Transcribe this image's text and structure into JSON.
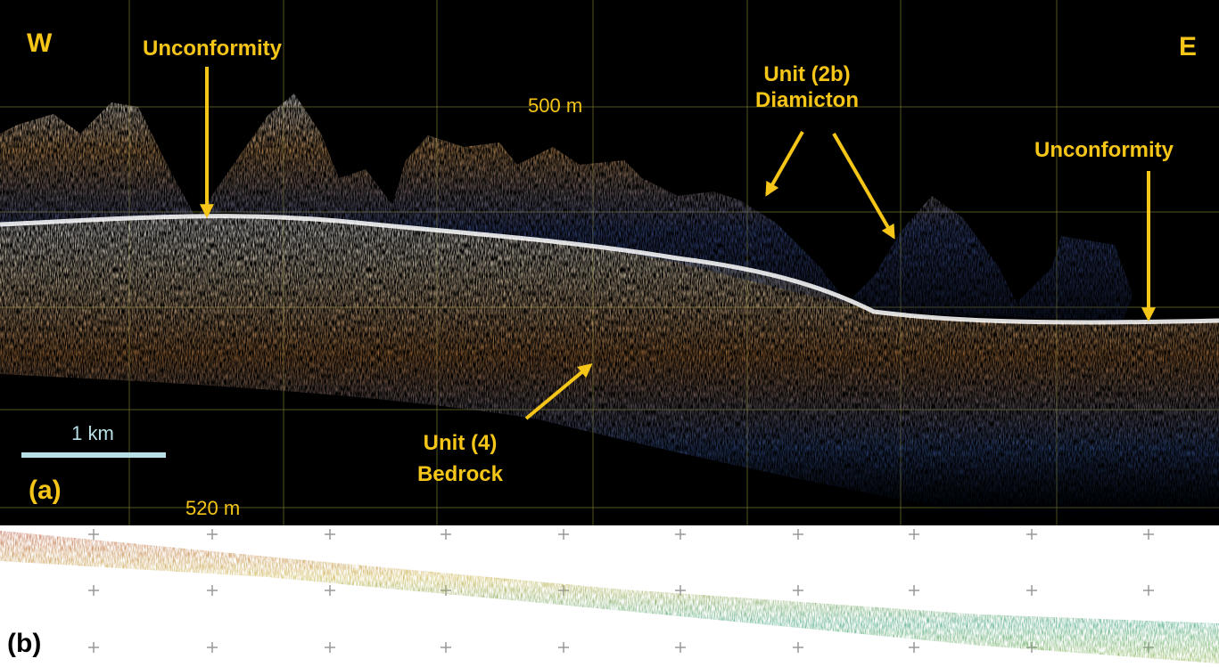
{
  "panel_a": {
    "label": "(a)",
    "west": "W",
    "east": "E",
    "depth_top": "500 m",
    "depth_bottom": "520 m",
    "scale_bar": "1 km",
    "annotations": {
      "unconformity_left": "Unconformity",
      "unconformity_right": "Unconformity",
      "diamicton_line1": "Unit (2b)",
      "diamicton_line2": "Diamicton",
      "bedrock_line1": "Unit (4)",
      "bedrock_line2": "Bedrock"
    }
  },
  "panel_b": {
    "label": "(b)"
  }
}
